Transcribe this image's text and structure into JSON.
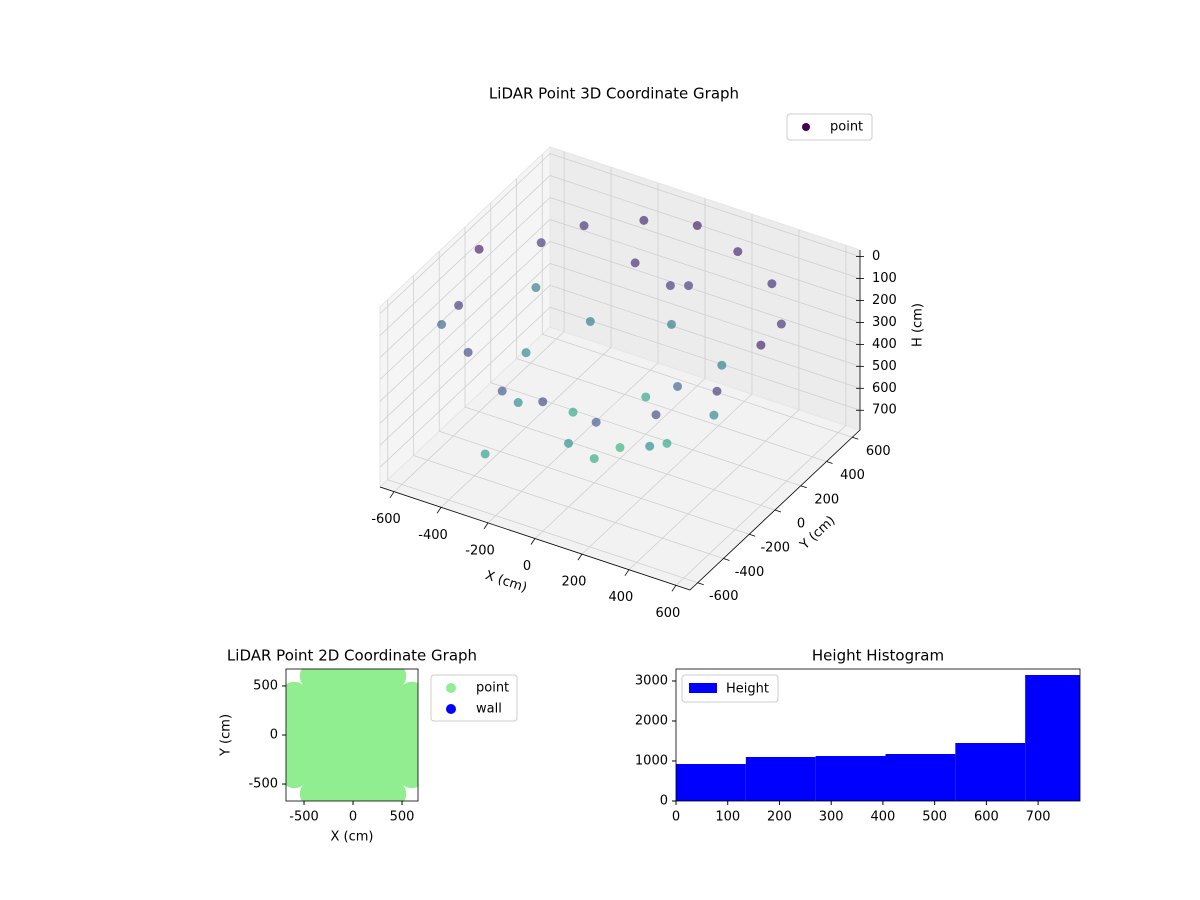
{
  "chart_data": [
    {
      "type": "scatter3d",
      "title": "LiDAR Point 3D Coordinate Graph",
      "xlabel": "X (cm)",
      "ylabel": "Y (cm)",
      "zlabel": "H (cm)",
      "xlim": [
        -660,
        660
      ],
      "ylim": [
        -660,
        660
      ],
      "zlim": [
        790,
        -30
      ],
      "xticks": [
        -600,
        -400,
        -200,
        0,
        200,
        400,
        600
      ],
      "yticks": [
        -600,
        -400,
        -200,
        0,
        200,
        400,
        600
      ],
      "zticks": [
        0,
        100,
        200,
        300,
        400,
        500,
        600,
        700
      ],
      "grid": true,
      "legend": "upper right",
      "colormap": [
        "#440154",
        "#3b528b",
        "#21918c",
        "#35b779",
        "#fde725"
      ],
      "series": [
        {
          "name": "point",
          "x": [
            -600,
            -500,
            -400,
            -200,
            0,
            200,
            400,
            550,
            600,
            550,
            400,
            200,
            0,
            -200,
            -400,
            -550,
            -400,
            -280,
            0,
            280,
            400,
            280,
            0,
            -280,
            -200,
            0,
            200,
            0,
            0,
            -650,
            -100,
            50,
            100,
            -550,
            300,
            -300
          ],
          "y": [
            0,
            300,
            450,
            550,
            600,
            550,
            450,
            250,
            0,
            -250,
            -450,
            -550,
            -600,
            -550,
            -450,
            -250,
            0,
            280,
            400,
            280,
            0,
            -280,
            -400,
            -280,
            0,
            200,
            0,
            -200,
            0,
            -200,
            300,
            300,
            350,
            350,
            -100,
            -500
          ],
          "z": [
            50,
            150,
            120,
            80,
            60,
            80,
            100,
            120,
            60,
            150,
            200,
            250,
            200,
            250,
            200,
            150,
            450,
            420,
            400,
            420,
            450,
            480,
            500,
            480,
            650,
            620,
            650,
            680,
            740,
            300,
            100,
            150,
            160,
            400,
            300,
            600
          ]
        }
      ]
    },
    {
      "type": "scatter",
      "title": "LiDAR Point 2D Coordinate Graph",
      "xlabel": "X (cm)",
      "ylabel": "Y (cm)",
      "xlim": [
        -684,
        663
      ],
      "ylim": [
        -673,
        673
      ],
      "xticks": [
        -500,
        0,
        500
      ],
      "yticks": [
        -500,
        0,
        500
      ],
      "legend": "outside upper right",
      "series": [
        {
          "name": "point",
          "color": "#90ee90",
          "x": [
            -400,
            -200,
            0,
            200,
            400,
            -600,
            -400,
            -200,
            0,
            200,
            400,
            600,
            -600,
            -400,
            -200,
            0,
            200,
            400,
            600,
            -600,
            -400,
            -200,
            0,
            200,
            400,
            600,
            -600,
            -400,
            -200,
            0,
            200,
            400,
            600,
            -600,
            -400,
            -200,
            0,
            200,
            400,
            600,
            -400,
            -200,
            0,
            200,
            400
          ],
          "y": [
            600,
            600,
            600,
            600,
            600,
            400,
            400,
            400,
            400,
            400,
            400,
            400,
            200,
            200,
            200,
            200,
            200,
            200,
            200,
            0,
            0,
            0,
            0,
            0,
            0,
            0,
            -200,
            -200,
            -200,
            -200,
            -200,
            -200,
            -200,
            -400,
            -400,
            -400,
            -400,
            -400,
            -400,
            -400,
            -600,
            -600,
            -600,
            -600,
            -600
          ]
        },
        {
          "name": "wall",
          "color": "#0000ff",
          "x": [],
          "y": []
        }
      ]
    },
    {
      "type": "histogram",
      "title": "Height Histogram",
      "legend": "upper left",
      "bins": [
        0,
        135,
        270,
        405,
        540,
        675,
        781
      ],
      "counts": [
        925,
        1100,
        1125,
        1175,
        1450,
        3150
      ],
      "series_name": "Height",
      "color": "#0000ff",
      "xlim": [
        0,
        781
      ],
      "ylim": [
        0,
        3300
      ],
      "xticks": [
        0,
        100,
        200,
        300,
        400,
        500,
        600,
        700
      ],
      "yticks": [
        0,
        1000,
        2000,
        3000
      ]
    }
  ]
}
